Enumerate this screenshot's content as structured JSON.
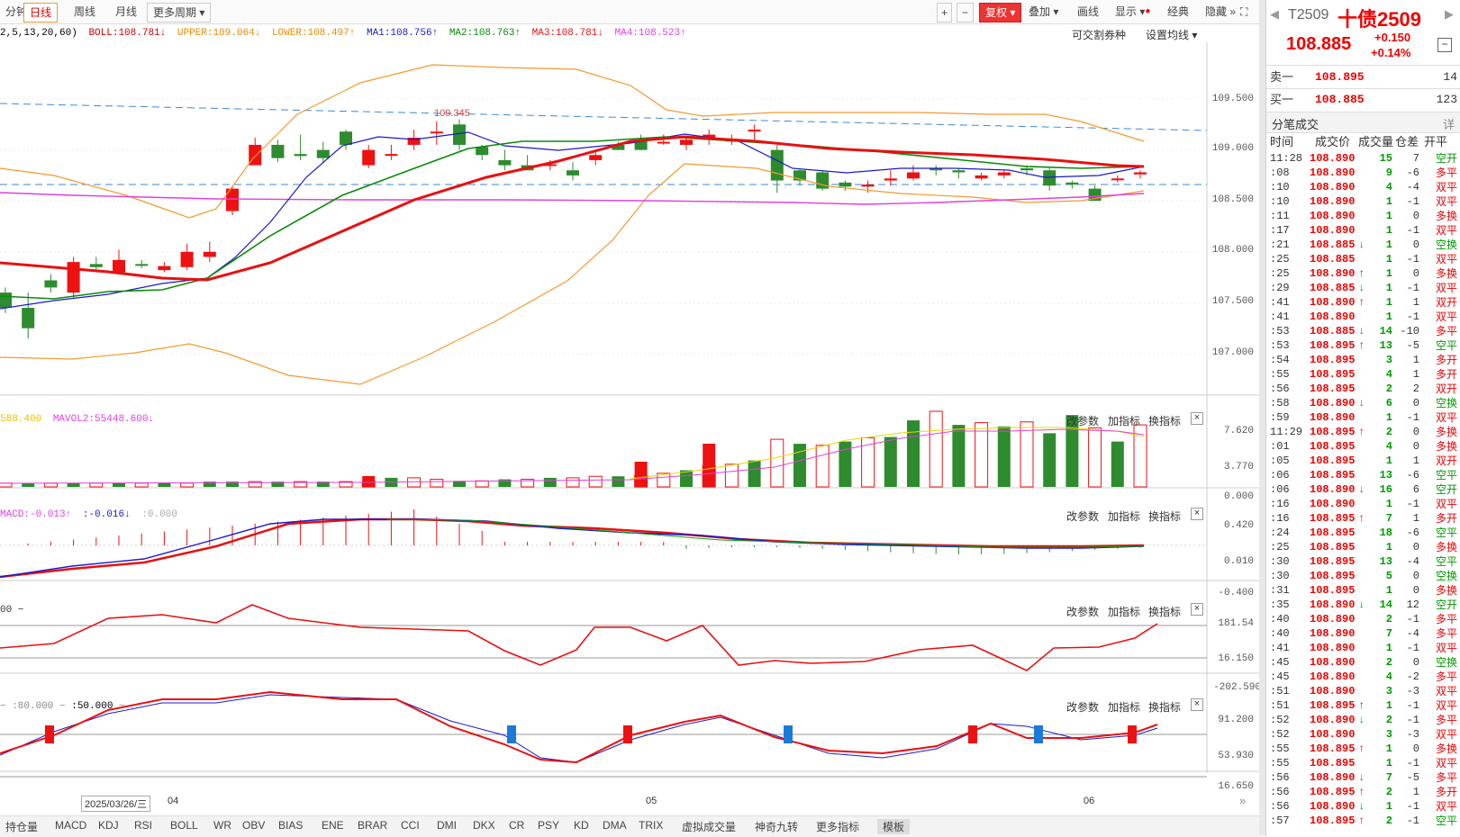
{
  "toolbar": {
    "tabs": [
      "分钟",
      "日线",
      "周线",
      "月线",
      "更多周期"
    ],
    "active_tab": "日线",
    "right_buttons": [
      "复权",
      "叠加",
      "画线",
      "显示",
      "经典",
      "隐藏"
    ]
  },
  "info_line": {
    "params": "2,5,13,20,60)",
    "boll": "BOLL:108.781",
    "upper": "UPPER:109.064",
    "lower": "LOWER:108.497",
    "ma1": "MA1:108.756",
    "ma2": "MA2:108.763",
    "ma3": "MA3:108.781",
    "ma4": "MA4:108.523",
    "convertible": "可交割券种",
    "ma_setting": "设置均线"
  },
  "main_chart": {
    "y_labels": [
      "109.500",
      "109.000",
      "108.500",
      "108.000",
      "107.500",
      "107.000"
    ],
    "high_label": "109.345"
  },
  "vol_panel": {
    "label1": "588.400",
    "label2": "MAVOL2:55448.600",
    "y_labels": [
      "7.620",
      "3.770",
      "0.000"
    ]
  },
  "macd_panel": {
    "label1": "MACD:-0.013",
    "label2": ":-0.016",
    "label3": ":0.000",
    "y_labels": [
      "0.420",
      "0.010",
      "-0.400"
    ]
  },
  "cci_panel": {
    "label1": "00",
    "y_labels": [
      "181.54",
      "16.150",
      "-202.590"
    ]
  },
  "kdj_panel": {
    "label1": ":80.000",
    "label2": ":50.000",
    "y_labels": [
      "91.200",
      "53.930",
      "16.650"
    ]
  },
  "panel_buttons": {
    "change": "改参数",
    "add": "加指标",
    "swap": "换指标"
  },
  "x_axis": {
    "date": "2025/03/26/三",
    "m04": "04",
    "m05": "05",
    "m06": "06"
  },
  "bottom_tabs": [
    "持仓量",
    "MACD",
    "KDJ",
    "RSI",
    "BOLL",
    "WR",
    "OBV",
    "BIAS",
    "ENE",
    "BRAR",
    "CCI",
    "DMI",
    "DKX",
    "CR",
    "PSY",
    "KD",
    "DMA",
    "TRIX",
    "虚拟成交量",
    "神奇九转",
    "更多指标",
    "模板"
  ],
  "right_panel": {
    "code": "T2509",
    "name": "十债2509",
    "price": "108.885",
    "change": "+0.150",
    "change_pct": "+0.14%",
    "sell1": {
      "label": "卖一",
      "price": "108.895",
      "vol": "14"
    },
    "buy1": {
      "label": "买一",
      "price": "108.885",
      "vol": "123"
    },
    "trades_title": "分笔成交",
    "detail": "详",
    "headers": [
      "时间",
      "成交价",
      "成交量",
      "仓差",
      "开平"
    ],
    "trades": [
      [
        "11:28",
        "108.890",
        "",
        "15",
        "7",
        "空开"
      ],
      [
        ":08",
        "108.890",
        "",
        "9",
        "-6",
        "多平"
      ],
      [
        ":10",
        "108.890",
        "",
        "4",
        "-4",
        "双平"
      ],
      [
        ":10",
        "108.890",
        "",
        "1",
        "-1",
        "双平"
      ],
      [
        ":11",
        "108.890",
        "",
        "1",
        "0",
        "多换"
      ],
      [
        ":17",
        "108.890",
        "",
        "1",
        "-1",
        "双平"
      ],
      [
        ":21",
        "108.885",
        "dn",
        "1",
        "0",
        "空换"
      ],
      [
        ":25",
        "108.885",
        "",
        "1",
        "-1",
        "双平"
      ],
      [
        ":25",
        "108.890",
        "up",
        "1",
        "0",
        "多换"
      ],
      [
        ":29",
        "108.885",
        "dn",
        "1",
        "-1",
        "双平"
      ],
      [
        ":41",
        "108.890",
        "up",
        "1",
        "1",
        "双开"
      ],
      [
        ":41",
        "108.890",
        "",
        "1",
        "-1",
        "双平"
      ],
      [
        ":53",
        "108.885",
        "dn",
        "14",
        "-10",
        "多平"
      ],
      [
        ":53",
        "108.895",
        "up",
        "13",
        "-5",
        "空平"
      ],
      [
        ":54",
        "108.895",
        "",
        "3",
        "1",
        "多开"
      ],
      [
        ":55",
        "108.895",
        "",
        "4",
        "1",
        "多开"
      ],
      [
        ":56",
        "108.895",
        "",
        "2",
        "2",
        "双开"
      ],
      [
        ":58",
        "108.890",
        "dn",
        "6",
        "0",
        "空换"
      ],
      [
        ":59",
        "108.890",
        "",
        "1",
        "-1",
        "双平"
      ],
      [
        "11:29",
        "108.895",
        "up",
        "2",
        "0",
        "多换"
      ],
      [
        ":01",
        "108.895",
        "",
        "4",
        "0",
        "多换"
      ],
      [
        ":05",
        "108.895",
        "",
        "1",
        "1",
        "双开"
      ],
      [
        ":06",
        "108.895",
        "",
        "13",
        "-6",
        "空平"
      ],
      [
        ":06",
        "108.890",
        "dn",
        "16",
        "6",
        "空开"
      ],
      [
        ":16",
        "108.890",
        "",
        "1",
        "-1",
        "双平"
      ],
      [
        ":16",
        "108.895",
        "up",
        "7",
        "1",
        "多开"
      ],
      [
        ":24",
        "108.895",
        "",
        "18",
        "-6",
        "空平"
      ],
      [
        ":25",
        "108.895",
        "",
        "1",
        "0",
        "多换"
      ],
      [
        ":30",
        "108.895",
        "",
        "13",
        "-4",
        "空平"
      ],
      [
        ":30",
        "108.895",
        "",
        "5",
        "0",
        "空换"
      ],
      [
        ":31",
        "108.895",
        "",
        "1",
        "0",
        "多换"
      ],
      [
        ":35",
        "108.890",
        "dn",
        "14",
        "12",
        "空开"
      ],
      [
        ":40",
        "108.890",
        "",
        "2",
        "-1",
        "多平"
      ],
      [
        ":40",
        "108.890",
        "",
        "7",
        "-4",
        "多平"
      ],
      [
        ":41",
        "108.890",
        "",
        "1",
        "-1",
        "双平"
      ],
      [
        ":45",
        "108.890",
        "",
        "2",
        "0",
        "空换"
      ],
      [
        ":45",
        "108.890",
        "",
        "4",
        "-2",
        "多平"
      ],
      [
        ":51",
        "108.890",
        "",
        "3",
        "-3",
        "双平"
      ],
      [
        ":51",
        "108.895",
        "up",
        "1",
        "-1",
        "双平"
      ],
      [
        ":52",
        "108.890",
        "dn",
        "2",
        "-1",
        "多平"
      ],
      [
        ":52",
        "108.890",
        "",
        "3",
        "-3",
        "双平"
      ],
      [
        ":55",
        "108.895",
        "up",
        "1",
        "0",
        "多换"
      ],
      [
        ":55",
        "108.895",
        "",
        "1",
        "-1",
        "双平"
      ],
      [
        ":56",
        "108.890",
        "dn",
        "7",
        "-5",
        "多平"
      ],
      [
        ":56",
        "108.895",
        "up",
        "2",
        "1",
        "多开"
      ],
      [
        ":56",
        "108.890",
        "dn",
        "1",
        "-1",
        "双平"
      ],
      [
        ":57",
        "108.895",
        "up",
        "2",
        "-1",
        "空平"
      ]
    ]
  },
  "colors": {
    "up": "#ee1111",
    "down": "#2e8b2e",
    "ma_red": "#e81010",
    "ma_blue": "#1a1acc",
    "ma_green": "#0a8a0a",
    "boll": "#f39a2e",
    "magenta": "#e040e0"
  }
}
